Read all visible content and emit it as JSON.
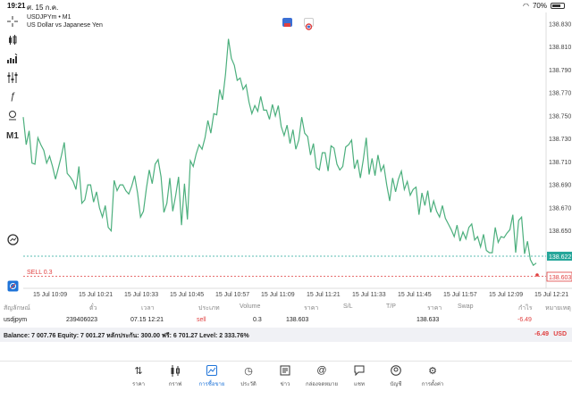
{
  "status": {
    "time": "19:21",
    "date": "ศ. 15 ก.ค.",
    "battery": "70%"
  },
  "chart": {
    "symbol_line": "USDJPYm • M1",
    "description": "US Dollar vs Japanese Yen",
    "current_price": "138.622",
    "sell_label": "SELL 0.3",
    "sell_price": "138.603",
    "line_color": "#4caf7d",
    "tag_color": "#26a69a",
    "sell_color": "#e04040"
  },
  "chart_data": {
    "type": "line",
    "ylim": [
      138.6,
      138.84
    ],
    "y_ticks": [
      "138.830",
      "138.810",
      "138.790",
      "138.770",
      "138.750",
      "138.730",
      "138.710",
      "138.690",
      "138.670",
      "138.650",
      "138.630",
      "138.610"
    ],
    "x_ticks": [
      "15 Jul 10:09",
      "15 Jul 10:21",
      "15 Jul 10:33",
      "15 Jul 10:45",
      "15 Jul 10:57",
      "15 Jul 11:09",
      "15 Jul 11:21",
      "15 Jul 11:33",
      "15 Jul 11:45",
      "15 Jul 11:57",
      "15 Jul 12:09",
      "15 Jul 12:21"
    ],
    "series": [
      {
        "values": [
          138.749,
          138.725,
          138.737,
          138.709,
          138.708,
          138.731,
          138.725,
          138.72,
          138.709,
          138.715,
          138.706,
          138.695,
          138.705,
          138.715,
          138.727,
          138.7,
          138.697,
          138.693,
          138.686,
          138.706,
          138.674,
          138.677,
          138.69,
          138.69,
          138.675,
          138.684,
          138.67,
          138.662,
          138.672,
          138.653,
          138.65,
          138.694,
          138.685,
          138.69,
          138.69,
          138.685,
          138.682,
          138.689,
          138.698,
          138.683,
          138.662,
          138.667,
          138.687,
          138.703,
          138.691,
          138.708,
          138.712,
          138.697,
          138.666,
          138.674,
          138.696,
          138.667,
          138.681,
          138.697,
          138.655,
          138.691,
          138.66,
          138.711,
          138.706,
          138.717,
          138.725,
          138.721,
          138.731,
          138.746,
          138.735,
          138.752,
          138.751,
          138.773,
          138.764,
          138.786,
          138.817,
          138.8,
          138.794,
          138.781,
          138.783,
          138.773,
          138.777,
          138.762,
          138.752,
          138.759,
          138.754,
          138.767,
          138.755,
          138.755,
          138.747,
          138.76,
          138.75,
          138.759,
          138.741,
          138.733,
          138.742,
          138.726,
          138.738,
          138.721,
          138.729,
          138.749,
          138.735,
          138.732,
          138.716,
          138.726,
          138.705,
          138.703,
          138.718,
          138.718,
          138.702,
          138.724,
          138.722,
          138.708,
          138.703,
          138.706,
          138.723,
          138.725,
          138.729,
          138.704,
          138.712,
          138.696,
          138.712,
          138.731,
          138.699,
          138.713,
          138.698,
          138.716,
          138.702,
          138.707,
          138.69,
          138.676,
          138.696,
          138.684,
          138.695,
          138.702,
          138.686,
          138.693,
          138.681,
          138.686,
          138.688,
          138.664,
          138.683,
          138.672,
          138.685,
          138.666,
          138.676,
          138.667,
          138.662,
          138.672,
          138.661,
          138.656,
          138.651,
          138.645,
          138.655,
          138.641,
          138.649,
          138.643,
          138.653,
          138.656,
          138.642,
          138.645,
          138.636,
          138.647,
          138.633,
          138.631,
          138.631,
          138.653,
          138.64,
          138.645,
          138.644,
          138.648,
          138.651,
          138.664,
          138.631,
          138.659,
          138.662,
          138.63,
          138.641,
          138.625,
          138.62,
          138.622
        ]
      }
    ]
  },
  "toolbar": {
    "timeframe": "M1"
  },
  "trades": {
    "headers": [
      "สัญลักษณ์",
      "ตั๋ว",
      "เวลา",
      "ประเภท",
      "Volume",
      "ราคา",
      "S/L",
      "T/P",
      "ราคา",
      "Swap",
      "กำไร",
      "หมายเหตุ"
    ],
    "row": {
      "symbol": "usdjpym",
      "ticket": "239406023",
      "time": "07.15 12:21",
      "type": "sell",
      "volume": "0.3",
      "open_price": "138.603",
      "current_price": "138.633",
      "profit": "-6.49"
    }
  },
  "balance": {
    "text": "Balance: 7 007.76 Equity: 7 001.27 หลักประกัน: 300.00 ฟรี: 6 701.27 Level: 2 333.76%",
    "pl": "-6.49",
    "currency": "USD"
  },
  "nav": [
    {
      "label": "ราคา",
      "icon": "quotes-icon"
    },
    {
      "label": "กราฟ",
      "icon": "candles-icon"
    },
    {
      "label": "การซื้อขาย",
      "icon": "trade-icon"
    },
    {
      "label": "ประวัติ",
      "icon": "history-icon"
    },
    {
      "label": "ข่าว",
      "icon": "news-icon"
    },
    {
      "label": "กล่องจดหมาย",
      "icon": "mailbox-icon"
    },
    {
      "label": "แชท",
      "icon": "chat-icon"
    },
    {
      "label": "บัญชี",
      "icon": "account-icon"
    },
    {
      "label": "การตั้งค่า",
      "icon": "settings-icon"
    }
  ]
}
